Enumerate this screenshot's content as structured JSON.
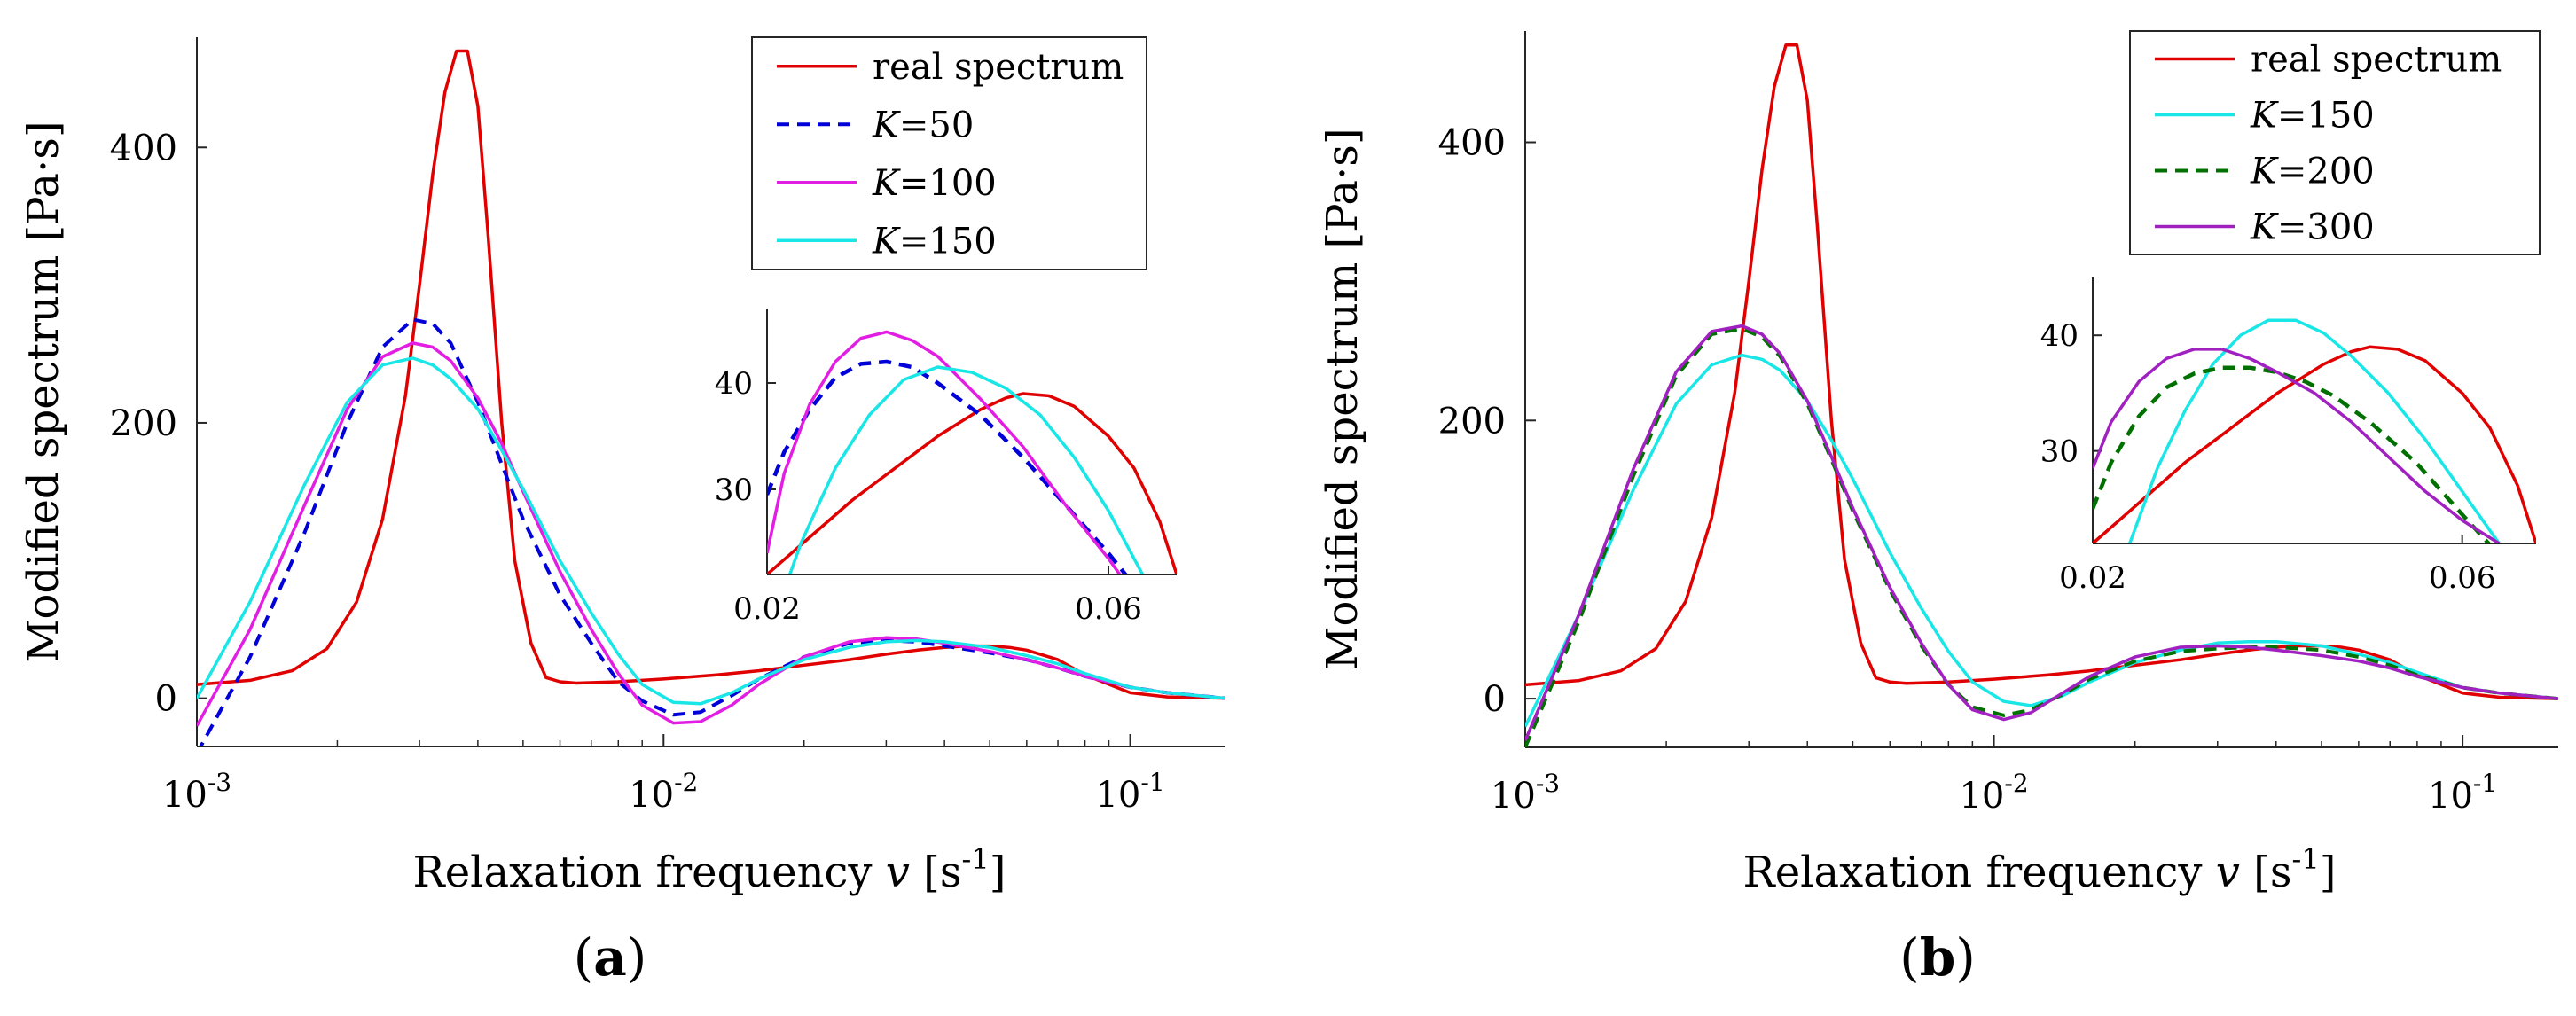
{
  "chart_data": [
    {
      "panel": "a",
      "panel_label_open": "(",
      "panel_label": "a",
      "panel_label_close": ")",
      "type": "line",
      "xscale": "log",
      "xlim": [
        0.001,
        0.16
      ],
      "ylim": [
        -35,
        480
      ],
      "ylabel": "Modified spectrum  [Pa·s]",
      "xlabel_pre": "Relaxation frequency ",
      "xlabel_var": "v",
      "xlabel_unit_open": "  [s",
      "xlabel_unit_exp": "-1",
      "xlabel_unit_close": "]",
      "yticks": [
        {
          "value": 0,
          "label": "0"
        },
        {
          "value": 200,
          "label": "200"
        },
        {
          "value": 400,
          "label": "400"
        }
      ],
      "xticks": [
        {
          "value": 0.001,
          "base": "10",
          "exp": "-3"
        },
        {
          "value": 0.01,
          "base": "10",
          "exp": "-2"
        },
        {
          "value": 0.1,
          "base": "10",
          "exp": "-1"
        }
      ],
      "legend_position": "top-right",
      "series": [
        {
          "name": "real spectrum",
          "color": "#e00000",
          "dash": "solid",
          "x": [
            0.001,
            0.0013,
            0.0016,
            0.0019,
            0.0022,
            0.0025,
            0.0028,
            0.003,
            0.0032,
            0.0034,
            0.0036,
            0.0038,
            0.004,
            0.0042,
            0.0045,
            0.0048,
            0.0052,
            0.0056,
            0.006,
            0.0065,
            0.008,
            0.01,
            0.013,
            0.016,
            0.02,
            0.025,
            0.03,
            0.035,
            0.04,
            0.045,
            0.05,
            0.055,
            0.06,
            0.07,
            0.08,
            0.1,
            0.12,
            0.16
          ],
          "y": [
            10,
            13,
            20,
            36,
            70,
            130,
            220,
            300,
            380,
            440,
            470,
            470,
            430,
            340,
            200,
            100,
            40,
            15,
            12,
            11,
            12,
            14,
            17,
            20,
            24,
            28,
            32,
            35,
            37,
            38,
            38,
            37,
            35,
            28,
            17,
            4,
            1,
            0
          ]
        },
        {
          "name": "K=50",
          "name_var": "K",
          "name_val": "=50",
          "color": "#0000d8",
          "dash": "dashed",
          "x": [
            0.001,
            0.0013,
            0.0017,
            0.0021,
            0.0025,
            0.0029,
            0.0032,
            0.0035,
            0.004,
            0.0045,
            0.005,
            0.006,
            0.007,
            0.008,
            0.009,
            0.0105,
            0.012,
            0.014,
            0.016,
            0.02,
            0.025,
            0.03,
            0.035,
            0.04,
            0.05,
            0.06,
            0.07,
            0.08,
            0.1,
            0.12,
            0.16
          ],
          "y": [
            -40,
            30,
            120,
            200,
            255,
            275,
            272,
            258,
            215,
            170,
            130,
            75,
            40,
            12,
            -2,
            -12,
            -10,
            2,
            14,
            30,
            40,
            42,
            41,
            38,
            33,
            28,
            22,
            16,
            8,
            4,
            0
          ]
        },
        {
          "name": "K=100",
          "name_var": "K",
          "name_val": "=100",
          "color": "#e31ee3",
          "dash": "solid",
          "x": [
            0.001,
            0.0013,
            0.0017,
            0.0021,
            0.0025,
            0.0029,
            0.0032,
            0.0035,
            0.004,
            0.0045,
            0.005,
            0.006,
            0.007,
            0.008,
            0.009,
            0.0105,
            0.012,
            0.014,
            0.016,
            0.02,
            0.025,
            0.03,
            0.035,
            0.04,
            0.05,
            0.06,
            0.07,
            0.08,
            0.1,
            0.12,
            0.16
          ],
          "y": [
            -20,
            50,
            140,
            210,
            248,
            258,
            255,
            245,
            218,
            185,
            150,
            92,
            50,
            18,
            -5,
            -18,
            -17,
            -5,
            10,
            30,
            41,
            44,
            43,
            40,
            34,
            28,
            22,
            16,
            8,
            4,
            0
          ]
        },
        {
          "name": "K=150",
          "name_var": "K",
          "name_val": "=150",
          "color": "#19e6e6",
          "dash": "solid",
          "x": [
            0.001,
            0.0013,
            0.0017,
            0.0021,
            0.0025,
            0.0029,
            0.0032,
            0.0035,
            0.004,
            0.0045,
            0.005,
            0.006,
            0.007,
            0.008,
            0.009,
            0.0105,
            0.012,
            0.014,
            0.016,
            0.02,
            0.025,
            0.03,
            0.035,
            0.04,
            0.05,
            0.06,
            0.07,
            0.08,
            0.1,
            0.12,
            0.16
          ],
          "y": [
            0,
            70,
            155,
            215,
            242,
            247,
            242,
            232,
            210,
            180,
            152,
            100,
            62,
            32,
            10,
            -3,
            -4,
            4,
            14,
            28,
            37,
            41,
            42,
            41,
            37,
            31,
            25,
            18,
            8,
            4,
            0
          ]
        }
      ],
      "inset": {
        "xlim": [
          0.02,
          0.068
        ],
        "ylim": [
          22,
          47
        ],
        "yticks": [
          {
            "value": 30,
            "label": "30"
          },
          {
            "value": 40,
            "label": "40"
          }
        ],
        "xticks": [
          {
            "value": 0.02,
            "label": "0.02"
          },
          {
            "value": 0.06,
            "label": "0.06"
          }
        ],
        "series": [
          {
            "name": "real spectrum",
            "color": "#e00000",
            "dash": "solid",
            "x": [
              0.02,
              0.025,
              0.03,
              0.035,
              0.04,
              0.045,
              0.048,
              0.05,
              0.053,
              0.056,
              0.06,
              0.063,
              0.066,
              0.068
            ],
            "y": [
              22,
              25.5,
              29,
              32,
              35,
              37.5,
              38.6,
              39,
              38.8,
              37.8,
              35,
              32,
              27,
              22
            ]
          },
          {
            "name": "K=50",
            "color": "#0000d8",
            "dash": "dashed",
            "x": [
              0.02,
              0.022,
              0.025,
              0.028,
              0.031,
              0.034,
              0.037,
              0.04,
              0.045,
              0.05,
              0.055,
              0.06,
              0.064
            ],
            "y": [
              29.5,
              33.5,
              37.5,
              40.5,
              41.8,
              42,
              41.5,
              40,
              37,
              33,
              28.5,
              24,
              20
            ]
          },
          {
            "name": "K=100",
            "color": "#e31ee3",
            "dash": "solid",
            "x": [
              0.02,
              0.022,
              0.025,
              0.028,
              0.031,
              0.034,
              0.037,
              0.04,
              0.045,
              0.05,
              0.055,
              0.06,
              0.064
            ],
            "y": [
              24,
              31.5,
              38,
              42,
              44.2,
              44.8,
              44,
              42.5,
              38.5,
              34,
              28.5,
              23.5,
              19
            ]
          },
          {
            "name": "K=150",
            "color": "#19e6e6",
            "dash": "solid",
            "x": [
              0.02,
              0.024,
              0.028,
              0.032,
              0.036,
              0.04,
              0.044,
              0.048,
              0.052,
              0.056,
              0.06,
              0.064
            ],
            "y": [
              16,
              25,
              32,
              37,
              40.3,
              41.5,
              41,
              39.5,
              37,
              33,
              28,
              22
            ]
          }
        ]
      }
    },
    {
      "panel": "b",
      "panel_label_open": "(",
      "panel_label": "b",
      "panel_label_close": ")",
      "type": "line",
      "xscale": "log",
      "xlim": [
        0.001,
        0.16
      ],
      "ylim": [
        -35,
        480
      ],
      "ylabel": "Modified spectrum  [Pa·s]",
      "xlabel_pre": "Relaxation frequency ",
      "xlabel_var": "v",
      "xlabel_unit_open": "  [s",
      "xlabel_unit_exp": "-1",
      "xlabel_unit_close": "]",
      "yticks": [
        {
          "value": 0,
          "label": "0"
        },
        {
          "value": 200,
          "label": "200"
        },
        {
          "value": 400,
          "label": "400"
        }
      ],
      "xticks": [
        {
          "value": 0.001,
          "base": "10",
          "exp": "-3"
        },
        {
          "value": 0.01,
          "base": "10",
          "exp": "-2"
        },
        {
          "value": 0.1,
          "base": "10",
          "exp": "-1"
        }
      ],
      "legend_position": "top-right",
      "series": [
        {
          "name": "real spectrum",
          "color": "#e00000",
          "dash": "solid",
          "x": [
            0.001,
            0.0013,
            0.0016,
            0.0019,
            0.0022,
            0.0025,
            0.0028,
            0.003,
            0.0032,
            0.0034,
            0.0036,
            0.0038,
            0.004,
            0.0042,
            0.0045,
            0.0048,
            0.0052,
            0.0056,
            0.006,
            0.0065,
            0.008,
            0.01,
            0.013,
            0.016,
            0.02,
            0.025,
            0.03,
            0.035,
            0.04,
            0.045,
            0.05,
            0.055,
            0.06,
            0.07,
            0.08,
            0.1,
            0.12,
            0.16
          ],
          "y": [
            10,
            13,
            20,
            36,
            70,
            130,
            220,
            300,
            380,
            440,
            470,
            470,
            430,
            340,
            200,
            100,
            40,
            15,
            12,
            11,
            12,
            14,
            17,
            20,
            24,
            28,
            32,
            35,
            37,
            38,
            38,
            37,
            35,
            28,
            17,
            4,
            1,
            0
          ]
        },
        {
          "name": "K=150",
          "name_var": "K",
          "name_val": "=150",
          "color": "#19e6e6",
          "dash": "solid",
          "x": [
            0.001,
            0.0013,
            0.0017,
            0.0021,
            0.0025,
            0.0029,
            0.0032,
            0.0035,
            0.004,
            0.0045,
            0.005,
            0.006,
            0.007,
            0.008,
            0.009,
            0.0105,
            0.012,
            0.014,
            0.016,
            0.02,
            0.025,
            0.03,
            0.035,
            0.04,
            0.05,
            0.06,
            0.07,
            0.08,
            0.1,
            0.12,
            0.16
          ],
          "y": [
            -20,
            60,
            150,
            212,
            240,
            247,
            244,
            236,
            214,
            186,
            158,
            105,
            65,
            34,
            12,
            -2,
            -5,
            2,
            12,
            26,
            35,
            40,
            41,
            41,
            38,
            32,
            26,
            19,
            8,
            4,
            0
          ]
        },
        {
          "name": "K=200",
          "name_var": "K",
          "name_val": "=200",
          "color": "#007000",
          "dash": "dashed",
          "x": [
            0.001,
            0.0013,
            0.0017,
            0.0021,
            0.0025,
            0.0029,
            0.0032,
            0.0035,
            0.004,
            0.0045,
            0.005,
            0.006,
            0.007,
            0.008,
            0.009,
            0.0105,
            0.012,
            0.014,
            0.016,
            0.02,
            0.025,
            0.03,
            0.035,
            0.04,
            0.05,
            0.06,
            0.07,
            0.08,
            0.1,
            0.12,
            0.16
          ],
          "y": [
            -35,
            55,
            160,
            232,
            262,
            266,
            260,
            246,
            212,
            172,
            135,
            78,
            38,
            10,
            -6,
            -12,
            -8,
            3,
            14,
            27,
            34,
            36,
            37,
            37,
            35,
            30,
            24,
            17,
            8,
            4,
            0
          ]
        },
        {
          "name": "K=300",
          "name_var": "K",
          "name_val": "=300",
          "color": "#a020c0",
          "dash": "solid",
          "x": [
            0.001,
            0.0013,
            0.0017,
            0.0021,
            0.0025,
            0.0029,
            0.0032,
            0.0035,
            0.004,
            0.0045,
            0.005,
            0.006,
            0.007,
            0.008,
            0.009,
            0.0105,
            0.012,
            0.014,
            0.016,
            0.02,
            0.025,
            0.03,
            0.035,
            0.04,
            0.05,
            0.06,
            0.07,
            0.08,
            0.1,
            0.12,
            0.16
          ],
          "y": [
            -30,
            60,
            165,
            235,
            264,
            268,
            262,
            248,
            214,
            174,
            137,
            80,
            40,
            10,
            -8,
            -15,
            -10,
            4,
            16,
            30,
            37,
            38,
            37,
            35,
            31,
            27,
            22,
            16,
            8,
            4,
            0
          ]
        }
      ],
      "inset": {
        "xlim": [
          0.02,
          0.068
        ],
        "ylim": [
          22,
          45
        ],
        "yticks": [
          {
            "value": 30,
            "label": "30"
          },
          {
            "value": 40,
            "label": "40"
          }
        ],
        "xticks": [
          {
            "value": 0.02,
            "label": "0.02"
          },
          {
            "value": 0.06,
            "label": "0.06"
          }
        ],
        "series": [
          {
            "name": "real spectrum",
            "color": "#e00000",
            "dash": "solid",
            "x": [
              0.02,
              0.025,
              0.03,
              0.035,
              0.04,
              0.045,
              0.048,
              0.05,
              0.053,
              0.056,
              0.06,
              0.063,
              0.066,
              0.068
            ],
            "y": [
              22,
              25.5,
              29,
              32,
              35,
              37.5,
              38.6,
              39,
              38.8,
              37.8,
              35,
              32,
              27,
              22
            ]
          },
          {
            "name": "K=150",
            "color": "#19e6e6",
            "dash": "solid",
            "x": [
              0.024,
              0.027,
              0.03,
              0.033,
              0.036,
              0.039,
              0.042,
              0.045,
              0.048,
              0.052,
              0.056,
              0.06,
              0.064
            ],
            "y": [
              22,
              28.5,
              33.5,
              37.5,
              40,
              41.3,
              41.3,
              40.2,
              38.2,
              35,
              31,
              26.5,
              22
            ]
          },
          {
            "name": "K=200",
            "color": "#007000",
            "dash": "dashed",
            "x": [
              0.02,
              0.022,
              0.025,
              0.028,
              0.031,
              0.034,
              0.037,
              0.04,
              0.043,
              0.046,
              0.05,
              0.055,
              0.06,
              0.064
            ],
            "y": [
              25,
              29,
              33,
              35.5,
              36.7,
              37.2,
              37.2,
              36.8,
              36,
              34.8,
              32.5,
              29,
              24.5,
              21
            ]
          },
          {
            "name": "K=300",
            "color": "#a020c0",
            "dash": "solid",
            "x": [
              0.02,
              0.022,
              0.025,
              0.028,
              0.031,
              0.034,
              0.037,
              0.04,
              0.044,
              0.048,
              0.052,
              0.056,
              0.06,
              0.064
            ],
            "y": [
              28.5,
              32.5,
              36,
              38,
              38.8,
              38.8,
              38,
              36.8,
              35,
              32.5,
              29.5,
              26.5,
              24,
              22
            ]
          }
        ]
      }
    }
  ]
}
